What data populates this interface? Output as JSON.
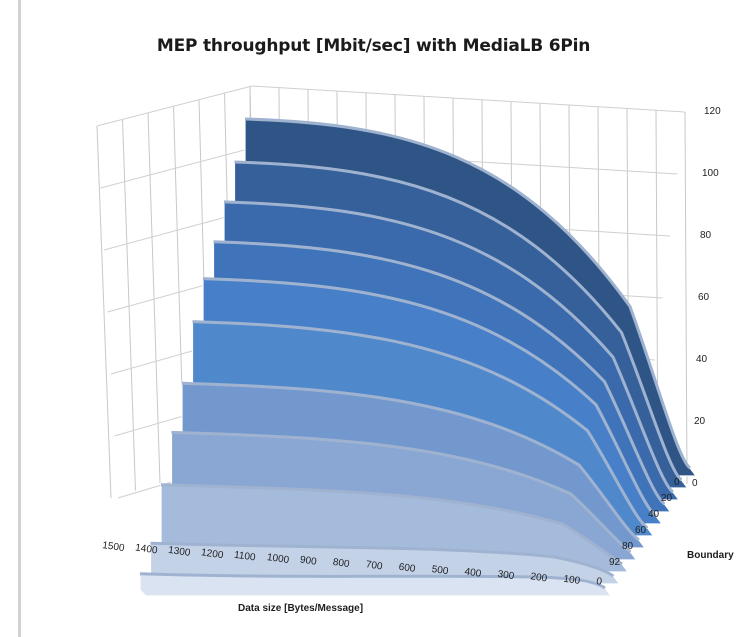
{
  "chart_data": {
    "type": "surface-3d",
    "title": "MEP throughput [Mbit/sec] with MediaLB 6Pin",
    "xlabel": "Data size [Bytes/Message]",
    "ylabel": "Boundary",
    "zlim": [
      0,
      120
    ],
    "z_ticks": [
      "0",
      "20",
      "40",
      "60",
      "80",
      "100",
      "120"
    ],
    "x_ticks": [
      "1500",
      "1400",
      "1300",
      "1200",
      "1100",
      "1000",
      "900",
      "800",
      "700",
      "600",
      "500",
      "400",
      "300",
      "200",
      "100",
      "0"
    ],
    "y_ticks": [
      "0",
      "20",
      "40",
      "60",
      "80",
      "92"
    ],
    "grid": true,
    "legend": "none",
    "series": [
      {
        "peak": 110,
        "color": "#2f5586"
      },
      {
        "peak": 100,
        "color": "#35609a"
      },
      {
        "peak": 91,
        "color": "#3a6aab"
      },
      {
        "peak": 82,
        "color": "#3f74ba"
      },
      {
        "peak": 74,
        "color": "#4780c8"
      },
      {
        "peak": 64,
        "color": "#5088cc"
      },
      {
        "peak": 48,
        "color": "#7398ce"
      },
      {
        "peak": 36,
        "color": "#8aa6d2"
      },
      {
        "peak": 23,
        "color": "#a5bbdc"
      },
      {
        "peak": 8,
        "color": "#c4d2e8"
      },
      {
        "peak": 2,
        "color": "#dae3f1"
      }
    ]
  }
}
